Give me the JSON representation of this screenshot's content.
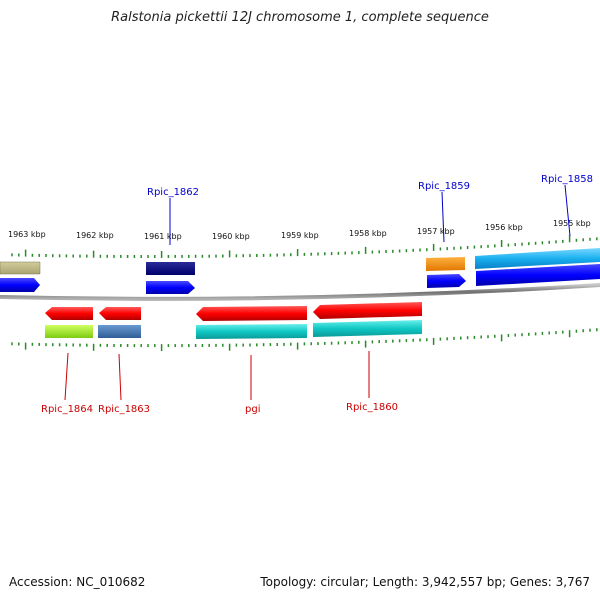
{
  "title": "Ralstonia pickettii 12J chromosome 1, complete sequence",
  "footer": {
    "accession": "Accession: NC_010682",
    "topology": "Topology: circular; Length: 3,942,557 bp; Genes: 3,767"
  },
  "colors": {
    "backbone": "#808080",
    "tick": "#2a8a2a",
    "label_forward": "#0000cc",
    "label_reverse": "#cc0000"
  },
  "kbp_ticks": [
    "1963 kbp",
    "1962 kbp",
    "1961 kbp",
    "1960 kbp",
    "1959 kbp",
    "1958 kbp",
    "1957 kbp",
    "1956 kbp",
    "1955 kbp"
  ],
  "gene_labels": {
    "top": [
      "Rpic_1862",
      "Rpic_1859",
      "Rpic_1858"
    ],
    "bottom": [
      "Rpic_1864",
      "Rpic_1863",
      "pgi",
      "Rpic_1860"
    ]
  },
  "features": {
    "top": [
      "tan",
      "navy",
      "orange",
      "sky-blue"
    ],
    "top_arrows": [
      "blue",
      "blue",
      "blue",
      "blue"
    ],
    "bottom_arrows": [
      "red",
      "red",
      "red",
      "red"
    ],
    "bottom": [
      "lime",
      "steel-blue",
      "teal",
      "teal"
    ]
  }
}
